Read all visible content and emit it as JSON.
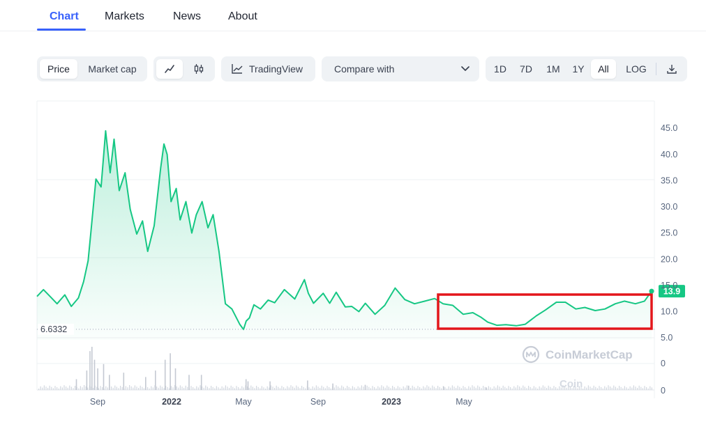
{
  "tabs": [
    {
      "label": "Chart",
      "active": true
    },
    {
      "label": "Markets",
      "active": false
    },
    {
      "label": "News",
      "active": false
    },
    {
      "label": "About",
      "active": false
    }
  ],
  "toolbar": {
    "price_label": "Price",
    "market_cap_label": "Market cap",
    "tradingview_label": "TradingView",
    "compare_label": "Compare with",
    "ranges": [
      "1D",
      "7D",
      "1M",
      "1Y",
      "All"
    ],
    "selected_range": "All",
    "log_label": "LOG",
    "icons": {
      "line_chart": "line-chart-icon",
      "candlestick": "candlestick-icon",
      "tradingview": "tradingview-icon",
      "compare_dropdown": "chevron-down-icon",
      "download": "download-icon"
    }
  },
  "colors": {
    "accent": "#3861fb",
    "line": "#16c784",
    "highlight_box": "#e3161b",
    "axis_text": "#58667e"
  },
  "watermark": {
    "primary": "CoinMarketCap",
    "secondary": "Coin"
  },
  "chart_data": {
    "type": "area",
    "y_ticks": [
      "45.0",
      "40.0",
      "35.0",
      "30.0",
      "25.0",
      "20.0",
      "15.0",
      "10.0",
      "5.0"
    ],
    "ylim": [
      5,
      45
    ],
    "volume_ticks": [
      "0",
      "0"
    ],
    "x_ticks": [
      {
        "label": "Sep",
        "bold": false
      },
      {
        "label": "2022",
        "bold": true
      },
      {
        "label": "May",
        "bold": false
      },
      {
        "label": "Sep",
        "bold": false
      },
      {
        "label": "2023",
        "bold": true
      },
      {
        "label": "May",
        "bold": false
      }
    ],
    "current_price_label": "13.9",
    "current_price": 13.9,
    "min_label": "6.6332",
    "min_value": 6.6332,
    "annotation": "red rectangle highlighting the most recent price range",
    "series": [
      {
        "x": [
          "2021-06-21",
          "2021-07-01",
          "2021-07-12",
          "2021-07-22",
          "2021-08-03",
          "2021-08-13",
          "2021-08-24",
          "2021-09-01",
          "2021-09-08",
          "2021-09-12",
          "2021-09-20",
          "2021-09-28",
          "2021-10-05",
          "2021-10-12",
          "2021-10-18",
          "2021-10-26",
          "2021-11-04",
          "2021-11-12",
          "2021-11-22",
          "2021-12-01",
          "2021-12-09",
          "2021-12-19",
          "2021-12-29",
          "2022-01-03",
          "2022-01-08",
          "2022-01-14",
          "2022-01-22",
          "2022-01-28",
          "2022-02-06",
          "2022-02-15",
          "2022-02-22",
          "2022-03-03",
          "2022-03-12",
          "2022-03-20",
          "2022-03-29",
          "2022-04-08",
          "2022-04-18",
          "2022-04-30",
          "2022-05-06",
          "2022-05-10",
          "2022-05-15",
          "2022-05-22",
          "2022-06-01",
          "2022-06-13",
          "2022-06-23",
          "2022-07-08",
          "2022-07-24",
          "2022-08-08",
          "2022-08-14",
          "2022-08-22",
          "2022-09-06",
          "2022-09-16",
          "2022-09-26",
          "2022-10-10",
          "2022-10-20",
          "2022-10-31",
          "2022-11-10",
          "2022-11-25",
          "2022-12-10",
          "2022-12-26",
          "2023-01-10",
          "2023-01-25",
          "2023-02-10",
          "2023-02-25",
          "2023-03-10",
          "2023-03-25",
          "2023-04-10",
          "2023-04-25",
          "2023-05-08",
          "2023-05-18",
          "2023-06-01",
          "2023-06-15",
          "2023-07-01",
          "2023-07-15",
          "2023-08-01",
          "2023-08-15",
          "2023-09-01",
          "2023-09-15",
          "2023-10-01",
          "2023-10-15",
          "2023-10-31",
          "2023-11-15",
          "2023-12-01",
          "2023-12-15",
          "2024-01-01",
          "2024-01-15",
          "2024-01-26"
        ],
        "values": [
          12.9,
          14.2,
          12.8,
          11.5,
          13.2,
          11.0,
          12.6,
          15.7,
          19.7,
          24.9,
          35.3,
          33.8,
          44.5,
          36.5,
          42.9,
          33.1,
          36.5,
          29.5,
          24.8,
          27.3,
          21.5,
          26.4,
          37.4,
          42.0,
          40.0,
          31.0,
          33.5,
          27.5,
          31.0,
          25.0,
          28.5,
          31.0,
          26.0,
          28.5,
          21.5,
          11.5,
          10.5,
          7.6,
          6.6,
          8.2,
          8.8,
          11.3,
          10.5,
          12.2,
          11.7,
          14.2,
          12.4,
          16.1,
          13.5,
          11.6,
          13.5,
          11.6,
          13.7,
          10.9,
          11.0,
          10.0,
          11.6,
          9.5,
          11.2,
          14.5,
          12.3,
          11.5,
          12.0,
          12.5,
          11.5,
          11.2,
          9.5,
          9.8,
          8.9,
          8.0,
          7.4,
          7.5,
          7.3,
          7.6,
          9.2,
          10.3,
          11.8,
          11.8,
          10.5,
          10.8,
          10.2,
          10.5,
          11.5,
          12.0,
          11.5,
          12.0,
          13.9
        ]
      }
    ],
    "volume": {
      "note": "relative daily volume bars (no absolute scale printed)",
      "x": [
        "2021-08-20",
        "2021-09-05",
        "2021-09-10",
        "2021-09-13",
        "2021-09-17",
        "2021-09-22",
        "2021-10-01",
        "2021-10-10",
        "2021-11-01",
        "2021-12-05",
        "2021-12-20",
        "2022-01-04",
        "2022-01-12",
        "2022-01-20",
        "2022-02-10",
        "2022-03-01",
        "2022-05-09",
        "2022-05-12",
        "2022-06-15",
        "2022-08-12",
        "2022-09-20",
        "2022-11-09",
        "2023-01-15",
        "2023-03-10",
        "2023-05-15"
      ],
      "values": [
        0.25,
        0.45,
        0.9,
        1.0,
        0.7,
        0.5,
        0.6,
        0.35,
        0.4,
        0.3,
        0.45,
        0.7,
        0.85,
        0.5,
        0.35,
        0.35,
        0.25,
        0.2,
        0.2,
        0.22,
        0.15,
        0.12,
        0.1,
        0.08,
        0.06
      ]
    }
  }
}
